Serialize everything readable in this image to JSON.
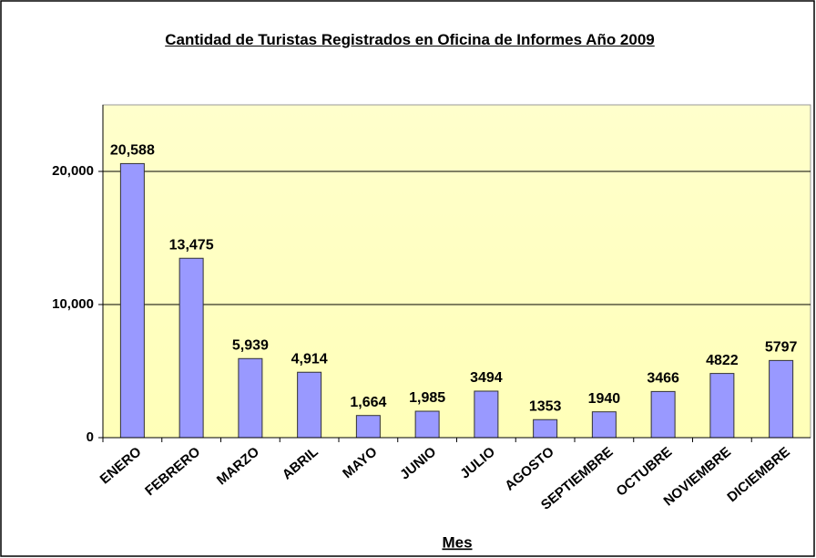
{
  "chart_data": {
    "type": "bar",
    "title": "Cantidad de Turistas Registrados en Oficina de Informes Año 2009",
    "x_label": "Mes",
    "categories": [
      "ENERO",
      "FEBRERO",
      "MARZO",
      "ABRIL",
      "MAYO",
      "JUNIO",
      "JULIO",
      "AGOSTO",
      "SEPTIEMBRE",
      "OCTUBRE",
      "NOVIEMBRE",
      "DICIEMBRE"
    ],
    "values": [
      20588,
      13475,
      5939,
      4914,
      1664,
      1985,
      3494,
      1353,
      1940,
      3466,
      4822,
      5797
    ],
    "value_labels": [
      "20,588",
      "13,475",
      "5,939",
      "4,914",
      "1,664",
      "1,985",
      "3494",
      "1353",
      "1940",
      "3466",
      "4822",
      "5797"
    ],
    "color": "#9999ff",
    "ylim": [
      0,
      25000
    ],
    "yticks": [
      0,
      {
        "value": 10000,
        "label": "10,000"
      },
      {
        "value": 20000,
        "label": "20,000"
      }
    ],
    "grid": true
  }
}
